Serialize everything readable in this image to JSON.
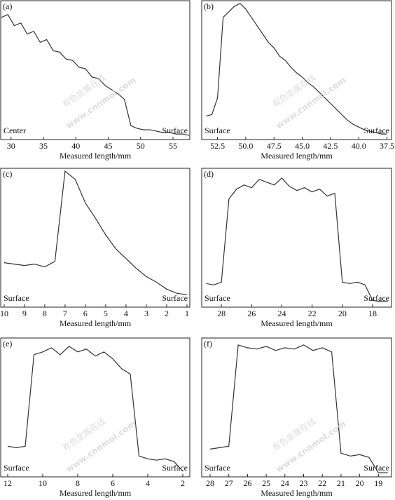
{
  "chart_data": [
    {
      "type": "line",
      "panel_label": "(a)",
      "xlabel": "Measured length/mm",
      "annotations": [
        {
          "text": "Center",
          "corner": "lower left"
        },
        {
          "text": "Surface",
          "corner": "lower right"
        }
      ],
      "xlim": [
        28.4,
        57.6
      ],
      "ylim": [
        0,
        100
      ],
      "xticks": [
        30,
        35,
        40,
        45,
        50,
        55
      ],
      "color": "#333333",
      "x": [
        28.5,
        29.5,
        30.5,
        31.5,
        32.5,
        33.5,
        34.5,
        35.5,
        36.5,
        37.5,
        38.5,
        39.5,
        40.5,
        41.5,
        42.5,
        43.5,
        44.5,
        45.5,
        46.5,
        47.5,
        48.5,
        49.5,
        50.5,
        51.5,
        52.5,
        53.5,
        54.5,
        55.5,
        56.5,
        57.5
      ],
      "values": [
        88,
        90,
        82,
        84,
        76,
        78,
        70,
        72,
        64,
        63,
        58,
        57,
        52,
        51,
        45,
        44,
        39,
        36,
        33,
        29,
        10,
        8,
        7,
        7,
        6,
        5,
        5,
        4,
        4,
        3
      ]
    },
    {
      "type": "line",
      "panel_label": "(b)",
      "xlabel": "Measured length/mm",
      "annotations": [
        {
          "text": "Surface",
          "corner": "lower left"
        },
        {
          "text": "Surface",
          "corner": "lower right"
        }
      ],
      "xlim": [
        53.9,
        37.1
      ],
      "ylim": [
        0,
        100
      ],
      "xticks": [
        52.5,
        {
          "value": 50,
          "label": "50.0"
        },
        47.5,
        {
          "value": 45,
          "label": "45.0"
        },
        42.5,
        {
          "value": 40,
          "label": "40.0"
        },
        37.5
      ],
      "color": "#333333",
      "x": [
        53.5,
        53.0,
        52.5,
        52.0,
        51.5,
        51.0,
        50.5,
        50.0,
        49.5,
        49.0,
        48.5,
        48.0,
        47.5,
        47.0,
        46.5,
        46.0,
        45.5,
        45.0,
        44.5,
        44.0,
        43.5,
        43.0,
        42.5,
        42.0,
        41.5,
        41.0,
        40.5,
        40.0,
        39.5,
        39.0,
        38.5,
        38.0,
        37.5
      ],
      "values": [
        17,
        18,
        30,
        88,
        92,
        96,
        98,
        94,
        88,
        82,
        76,
        70,
        66,
        60,
        57,
        52,
        48,
        45,
        41,
        38,
        34,
        30,
        26,
        22,
        18,
        14,
        11,
        9,
        7,
        6,
        5,
        4,
        4
      ]
    },
    {
      "type": "line",
      "panel_label": "(c)",
      "xlabel": "Measured length/mm",
      "annotations": [
        {
          "text": "Surface",
          "corner": "lower left"
        },
        {
          "text": "Surface",
          "corner": "lower right"
        }
      ],
      "xlim": [
        10.17,
        0.86
      ],
      "ylim": [
        0,
        100
      ],
      "xticks": [
        10,
        9,
        8,
        7,
        6,
        5,
        4,
        3,
        2,
        1
      ],
      "color": "#333333",
      "x": [
        10,
        9.5,
        9,
        8.5,
        8,
        7.5,
        7,
        6.5,
        6,
        5.5,
        5,
        4.5,
        4,
        3.5,
        3,
        2.5,
        2,
        1.5,
        1
      ],
      "values": [
        32,
        31,
        30,
        31,
        29,
        33,
        98,
        92,
        75,
        64,
        52,
        42,
        35,
        28,
        22,
        18,
        13,
        10,
        9
      ]
    },
    {
      "type": "line",
      "panel_label": "(d)",
      "xlabel": "Measured length/mm",
      "annotations": [
        {
          "text": "Surface",
          "corner": "lower left"
        },
        {
          "text": "Surface",
          "corner": "lower right"
        }
      ],
      "xlim": [
        29.3,
        16.75
      ],
      "ylim": [
        0,
        100
      ],
      "xticks": [
        28,
        26,
        24,
        22,
        20,
        18
      ],
      "color": "#333333",
      "x": [
        29,
        28.5,
        28,
        27.5,
        27,
        26.5,
        26,
        25.5,
        25,
        24.5,
        24,
        23.5,
        23,
        22.5,
        22,
        21.5,
        21,
        20.5,
        20,
        19.5,
        19,
        18.5,
        18,
        17.5,
        17
      ],
      "values": [
        17,
        16,
        18,
        78,
        85,
        88,
        86,
        92,
        90,
        88,
        93,
        87,
        84,
        86,
        83,
        85,
        80,
        82,
        18,
        17,
        18,
        16,
        5,
        4,
        4
      ]
    },
    {
      "type": "line",
      "panel_label": "(e)",
      "xlabel": "Measured length/mm",
      "annotations": [
        {
          "text": "Surface",
          "corner": "lower left"
        },
        {
          "text": "Surface",
          "corner": "lower right"
        }
      ],
      "xlim": [
        12.4,
        1.6
      ],
      "ylim": [
        0,
        100
      ],
      "xticks": [
        12,
        10,
        8,
        6,
        4,
        2
      ],
      "color": "#333333",
      "x": [
        12,
        11.5,
        11,
        10.5,
        10,
        9.5,
        9,
        8.5,
        8,
        7.5,
        7,
        6.5,
        6,
        5.5,
        5,
        4.5,
        4,
        3.5,
        3,
        2.5,
        2
      ],
      "values": [
        22,
        21,
        22,
        88,
        90,
        93,
        88,
        94,
        90,
        92,
        87,
        90,
        85,
        78,
        74,
        15,
        13,
        12,
        13,
        11,
        4
      ]
    },
    {
      "type": "line",
      "panel_label": "(f)",
      "xlabel": "Measured length/mm",
      "annotations": [
        {
          "text": "Surface",
          "corner": "lower left"
        },
        {
          "text": "Surface",
          "corner": "lower right"
        }
      ],
      "xlim": [
        28.45,
        18.3
      ],
      "ylim": [
        0,
        100
      ],
      "xticks": [
        28,
        27,
        26,
        25,
        24,
        23,
        22,
        21,
        20,
        19
      ],
      "color": "#333333",
      "x": [
        28,
        27.5,
        27,
        26.5,
        26,
        25.5,
        25,
        24.5,
        24,
        23.5,
        23,
        22.5,
        22,
        21.5,
        21,
        20.5,
        20,
        19.5,
        19,
        18.5
      ],
      "values": [
        20,
        21,
        22,
        95,
        93,
        92,
        94,
        91,
        93,
        92,
        95,
        91,
        93,
        90,
        17,
        15,
        16,
        14,
        3,
        3
      ]
    }
  ],
  "watermark": {
    "text": "有色金属在线",
    "url": "www.cnnmol.com"
  }
}
